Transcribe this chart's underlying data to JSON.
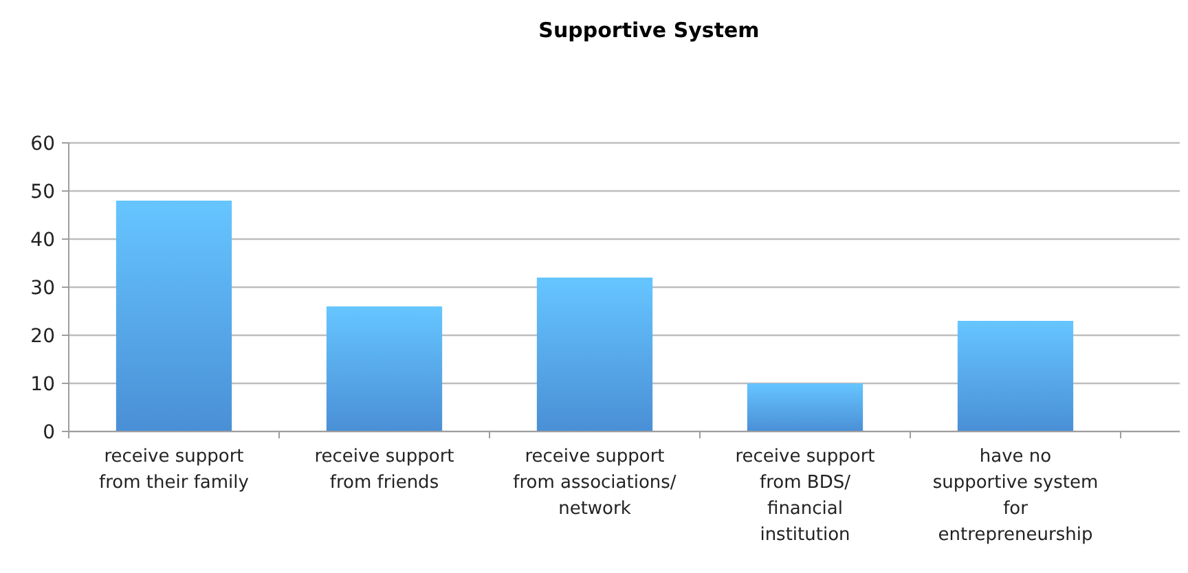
{
  "chart_data": {
    "type": "bar",
    "title": "Supportive System",
    "categories": [
      "receive support from their family",
      "receive support from friends",
      "receive support from associations/ network",
      "receive support from BDS/ financial institution",
      "have no supportive system for entrepreneurship"
    ],
    "values": [
      48,
      26,
      32,
      10,
      23
    ],
    "color": "#4a8fd6",
    "ylim": [
      0,
      60
    ],
    "yticks": [
      0,
      10,
      20,
      30,
      40,
      50,
      60
    ],
    "grid": "y"
  }
}
